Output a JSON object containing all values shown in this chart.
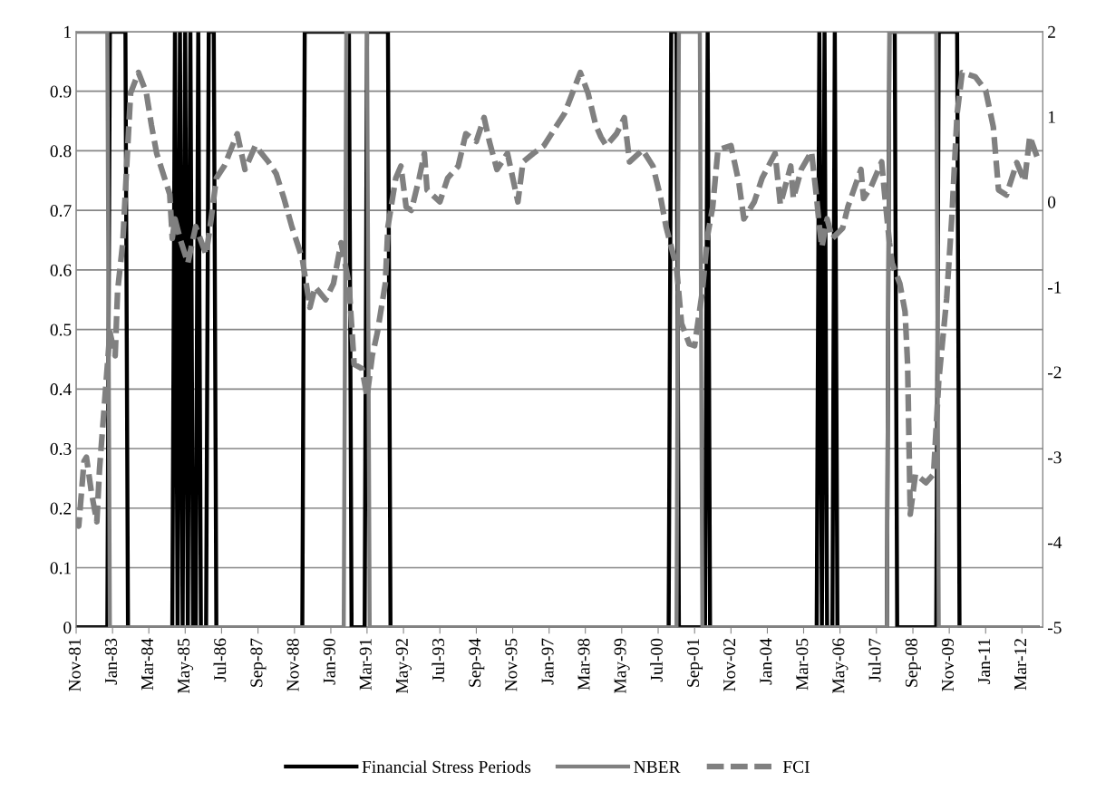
{
  "chart_data": {
    "type": "line",
    "legend": "bottom",
    "grid": "y",
    "xlim": [
      "1981-11",
      "2012-11"
    ],
    "xticks": [
      {
        "value": "1981-11",
        "label": "Nov-81"
      },
      {
        "value": "1983-01",
        "label": "Jan-83"
      },
      {
        "value": "1984-03",
        "label": "Mar-84"
      },
      {
        "value": "1985-05",
        "label": "May-85"
      },
      {
        "value": "1986-07",
        "label": "Jul-86"
      },
      {
        "value": "1987-09",
        "label": "Sep-87"
      },
      {
        "value": "1988-11",
        "label": "Nov-88"
      },
      {
        "value": "1990-01",
        "label": "Jan-90"
      },
      {
        "value": "1991-03",
        "label": "Mar-91"
      },
      {
        "value": "1992-05",
        "label": "May-92"
      },
      {
        "value": "1993-07",
        "label": "Jul-93"
      },
      {
        "value": "1994-09",
        "label": "Sep-94"
      },
      {
        "value": "1995-11",
        "label": "Nov-95"
      },
      {
        "value": "1997-01",
        "label": "Jan-97"
      },
      {
        "value": "1998-03",
        "label": "Mar-98"
      },
      {
        "value": "1999-05",
        "label": "May-99"
      },
      {
        "value": "2000-07",
        "label": "Jul-00"
      },
      {
        "value": "2001-09",
        "label": "Sep-01"
      },
      {
        "value": "2002-11",
        "label": "Nov-02"
      },
      {
        "value": "2004-01",
        "label": "Jan-04"
      },
      {
        "value": "2005-03",
        "label": "Mar-05"
      },
      {
        "value": "2006-05",
        "label": "May-06"
      },
      {
        "value": "2007-07",
        "label": "Jul-07"
      },
      {
        "value": "2008-09",
        "label": "Sep-08"
      },
      {
        "value": "2009-11",
        "label": "Nov-09"
      },
      {
        "value": "2011-01",
        "label": "Jan-11"
      },
      {
        "value": "2012-03",
        "label": "Mar-12"
      }
    ],
    "ylim": [
      0,
      1
    ],
    "yticks": [
      0,
      0.1,
      0.2,
      0.3,
      0.4,
      0.5,
      0.6,
      0.7,
      0.8,
      0.9,
      1
    ],
    "y2lim": [
      -5,
      2
    ],
    "y2ticks": [
      -5,
      -4,
      -3,
      -2,
      -1,
      0,
      1,
      2
    ],
    "series": [
      {
        "name": "Financial Stress Periods",
        "color": "#000000",
        "line_style": "solid",
        "x": [
          "1981-11",
          "1982-11",
          "1982-12",
          "1983-06",
          "1983-07",
          "1984-12",
          "1985-01",
          "1985-02",
          "1985-03",
          "1985-04",
          "1985-05",
          "1985-06",
          "1985-07",
          "1985-08",
          "1985-09",
          "1985-10",
          "1985-11",
          "1986-01",
          "1986-02",
          "1986-04",
          "1986-05",
          "1989-02",
          "1989-03",
          "1990-08",
          "1990-09",
          "1991-02",
          "1991-03",
          "1991-11",
          "1991-12",
          "2000-11",
          "2000-12",
          "2001-02",
          "2001-03",
          "2002-01",
          "2002-02",
          "2002-03",
          "2005-08",
          "2005-09",
          "2005-10",
          "2005-11",
          "2005-12",
          "2006-02",
          "2006-03",
          "2006-04",
          "2007-11",
          "2007-12",
          "2008-02",
          "2008-03",
          "2009-06",
          "2009-07",
          "2010-02",
          "2010-03",
          "2012-09"
        ],
        "values": [
          0,
          0,
          1,
          1,
          0,
          0,
          1,
          0,
          1,
          0,
          1,
          0,
          1,
          0,
          0,
          1,
          0,
          0,
          1,
          1,
          0,
          0,
          1,
          1,
          0,
          0,
          1,
          1,
          0,
          0,
          1,
          1,
          0,
          0,
          1,
          0,
          0,
          1,
          0,
          1,
          0,
          0,
          1,
          0,
          0,
          1,
          1,
          0,
          0,
          1,
          1,
          0,
          0
        ]
      },
      {
        "name": "NBER",
        "color": "#808080",
        "line_style": "solid",
        "x": [
          "1981-11",
          "1982-11",
          "1982-12",
          "1990-06",
          "1990-07",
          "1991-03",
          "1991-04",
          "2001-02",
          "2001-03",
          "2001-11",
          "2001-12",
          "2007-11",
          "2007-12",
          "2009-06",
          "2009-07",
          "2012-09"
        ],
        "values": [
          1,
          1,
          0,
          0,
          1,
          1,
          0,
          0,
          1,
          1,
          0,
          0,
          1,
          1,
          0,
          0
        ]
      },
      {
        "name": "FCI",
        "color": "#808080",
        "line_style": "dashed",
        "axis": "y2",
        "x": [
          "1981-11",
          "1981-12",
          "1982-02",
          "1982-03",
          "1982-05",
          "1982-07",
          "1982-08",
          "1982-12",
          "1983-02",
          "1983-03",
          "1983-05",
          "1983-07",
          "1983-08",
          "1983-11",
          "1984-02",
          "1984-04",
          "1984-06",
          "1984-09",
          "1984-11",
          "1984-12",
          "1985-01",
          "1985-03",
          "1985-06",
          "1985-09",
          "1986-01",
          "1986-03",
          "1986-05",
          "1986-08",
          "1987-01",
          "1987-04",
          "1987-08",
          "1988-01",
          "1988-04",
          "1988-07",
          "1988-10",
          "1989-02",
          "1989-05",
          "1989-07",
          "1989-11",
          "1990-02",
          "1990-05",
          "1990-08",
          "1990-10",
          "1991-01",
          "1991-03",
          "1991-05",
          "1991-07",
          "1991-10",
          "1991-11",
          "1992-02",
          "1992-04",
          "1992-06",
          "1992-08",
          "1992-11",
          "1993-01",
          "1993-02",
          "1993-07",
          "1993-10",
          "1994-02",
          "1994-05",
          "1994-09",
          "1994-12",
          "1995-02",
          "1995-05",
          "1995-09",
          "1996-01",
          "1996-03",
          "1996-07",
          "1996-11",
          "1997-03",
          "1997-07",
          "1997-10",
          "1998-01",
          "1998-04",
          "1998-07",
          "1998-09",
          "1998-11",
          "1999-03",
          "1999-06",
          "1999-08",
          "2000-01",
          "2000-05",
          "2000-08",
          "2000-10",
          "2001-02",
          "2001-04",
          "2001-07",
          "2001-09",
          "2001-12",
          "2002-02",
          "2002-04",
          "2002-06",
          "2002-11",
          "2003-02",
          "2003-04",
          "2003-08",
          "2003-11",
          "2004-04",
          "2004-06",
          "2004-10",
          "2004-11",
          "2005-02",
          "2005-06",
          "2005-08",
          "2005-09",
          "2005-10",
          "2005-12",
          "2006-02",
          "2006-06",
          "2006-08",
          "2007-01",
          "2007-02",
          "2007-05",
          "2007-09",
          "2007-10",
          "2007-12",
          "2008-01",
          "2008-04",
          "2008-06",
          "2008-07",
          "2008-08",
          "2008-10",
          "2009-02",
          "2009-05",
          "2009-07",
          "2009-10",
          "2009-12",
          "2010-02",
          "2010-04",
          "2010-09",
          "2011-01",
          "2011-04",
          "2011-06",
          "2011-09",
          "2012-01",
          "2012-04",
          "2012-06",
          "2012-09"
        ],
        "values": [
          -3.72,
          -3.81,
          -3.05,
          -3.0,
          -3.43,
          -3.76,
          -3.15,
          -1.53,
          -1.81,
          -1.05,
          -0.48,
          0.71,
          1.28,
          1.52,
          1.28,
          0.9,
          0.57,
          0.28,
          0.09,
          -0.43,
          -0.2,
          -0.43,
          -0.72,
          -0.29,
          -0.62,
          -0.2,
          0.28,
          0.42,
          0.8,
          0.38,
          0.66,
          0.47,
          0.33,
          0.04,
          -0.29,
          -0.67,
          -1.24,
          -1.0,
          -1.15,
          -0.96,
          -0.48,
          -0.96,
          -1.91,
          -1.96,
          -2.29,
          -1.81,
          -1.53,
          -0.96,
          -0.29,
          0.28,
          0.42,
          -0.06,
          -0.1,
          0.28,
          0.57,
          0.14,
          0.0,
          0.28,
          0.42,
          0.8,
          0.71,
          0.99,
          0.71,
          0.38,
          0.57,
          0.0,
          0.47,
          0.57,
          0.66,
          0.85,
          1.04,
          1.28,
          1.52,
          1.28,
          0.9,
          0.76,
          0.66,
          0.8,
          0.99,
          0.47,
          0.61,
          0.42,
          0.04,
          -0.29,
          -0.77,
          -1.43,
          -1.67,
          -1.69,
          -1.05,
          -0.39,
          -0.06,
          0.61,
          0.66,
          0.23,
          -0.2,
          0.0,
          0.28,
          0.57,
          -0.03,
          0.42,
          0.04,
          0.38,
          0.59,
          0.04,
          -0.29,
          -0.53,
          -0.2,
          -0.43,
          -0.31,
          -0.06,
          0.38,
          0.04,
          0.18,
          0.47,
          0.14,
          -0.48,
          -0.72,
          -0.96,
          -1.29,
          -1.91,
          -3.67,
          -3.2,
          -3.3,
          -3.2,
          -2.1,
          -1.14,
          -0.18,
          1.04,
          1.52,
          1.47,
          1.31,
          0.88,
          0.14,
          0.08,
          0.46,
          0.24,
          0.77,
          0.51
        ]
      }
    ]
  }
}
